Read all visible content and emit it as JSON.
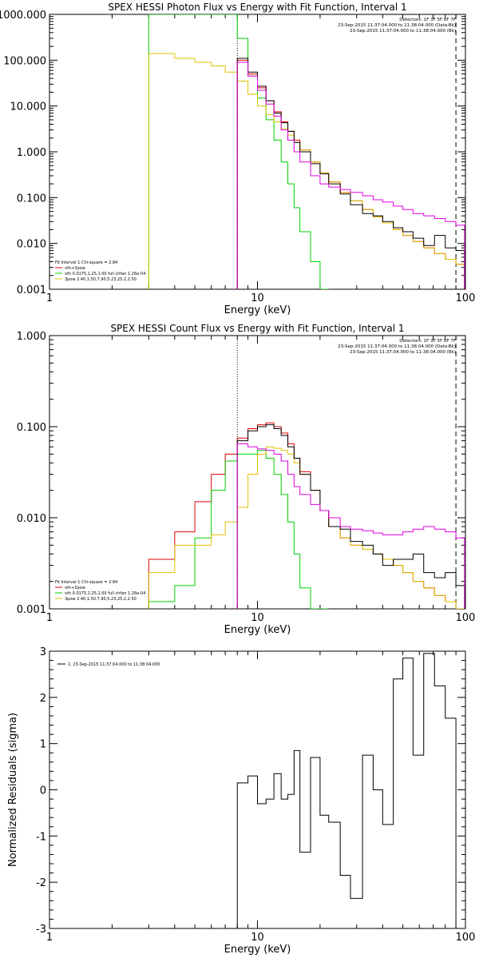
{
  "chart_data": [
    {
      "type": "line",
      "title": "SPEX HESSI Photon Flux vs Energy with Fit Function, Interval 1",
      "xlabel": "Energy (keV)",
      "ylabel": "",
      "xscale": "log",
      "yscale": "log",
      "xlim": [
        1,
        100
      ],
      "ylim": [
        0.001,
        1000
      ],
      "x_tick_labels": [
        "1",
        "10",
        "100"
      ],
      "y_tick_labels": [
        "0.001",
        "0.010",
        "0.100",
        "1.000",
        "10.000",
        "100.000",
        "1000.000"
      ],
      "vertical_lines": [
        {
          "x": 8,
          "style": "dotted"
        },
        {
          "x": 90,
          "style": "dashed"
        }
      ],
      "info_lines": [
        "Detectors: 1F 3F 5F 6F 7F",
        "23-Sep-2015 11:37:04.000 to 11:38:04.000 (Data-Bk)",
        "23-Sep-2015 11:37:04.000 to 11:38:04.000 (Bk)"
      ],
      "legend_position": "bottom-left",
      "legend_header": "Fit Interval 1   Chi-square = 2.84",
      "series": [
        {
          "name": "vth+3pow",
          "color": "#e00000",
          "x": [
            8,
            9,
            10,
            11,
            12,
            13,
            14,
            15,
            16,
            18,
            20,
            22,
            25,
            28,
            32,
            36,
            40,
            45,
            50,
            56,
            63,
            71,
            80,
            90
          ],
          "y": [
            100,
            50,
            25,
            13,
            7.5,
            4.5,
            2.8,
            1.8,
            1.1,
            0.6,
            0.35,
            0.22,
            0.13,
            0.085,
            0.055,
            0.038,
            0.028,
            0.02,
            0.015,
            0.011,
            0.008,
            0.006,
            0.0045,
            0.0035
          ]
        },
        {
          "name": "vth 0.0175,1.25,1.00  full chfan 1.26e-04",
          "color": "#00d000",
          "x": [
            3,
            6,
            7,
            8,
            9,
            10,
            11,
            12,
            13,
            14,
            15,
            16,
            18,
            20
          ],
          "y": [
            1000,
            1000,
            1000,
            300,
            45,
            15,
            5,
            1.8,
            0.6,
            0.2,
            0.06,
            0.018,
            0.004,
            0.001
          ]
        },
        {
          "name": "3pow 2.40,1.50,7.90,5.23,25.2,2.50",
          "color": "#e0c000",
          "x": [
            3,
            4,
            5,
            6,
            7,
            8,
            9,
            10,
            11,
            12,
            13,
            14,
            15,
            16,
            18,
            20,
            22,
            25,
            28,
            32,
            36,
            40,
            45,
            50,
            56,
            63,
            71,
            80,
            90
          ],
          "y": [
            140,
            110,
            90,
            75,
            55,
            35,
            18,
            10,
            6.5,
            4.5,
            3.2,
            2.3,
            1.6,
            1.1,
            0.6,
            0.35,
            0.22,
            0.13,
            0.085,
            0.055,
            0.038,
            0.028,
            0.02,
            0.015,
            0.011,
            0.008,
            0.006,
            0.0045,
            0.0035
          ]
        },
        {
          "name": "Data-Bk",
          "color": "#000000",
          "x": [
            8,
            9,
            10,
            11,
            12,
            13,
            14,
            15,
            16,
            18,
            20,
            22,
            25,
            28,
            32,
            36,
            40,
            45,
            50,
            56,
            63,
            71,
            80,
            90
          ],
          "y": [
            110,
            55,
            27,
            13,
            7,
            4.3,
            2.8,
            1.6,
            1.0,
            0.55,
            0.33,
            0.2,
            0.12,
            0.07,
            0.045,
            0.04,
            0.03,
            0.022,
            0.018,
            0.013,
            0.009,
            0.015,
            0.008,
            0.007
          ]
        },
        {
          "name": "Bk",
          "color": "#e000e0",
          "x": [
            8,
            9,
            10,
            11,
            12,
            13,
            14,
            15,
            16,
            18,
            20,
            22,
            25,
            28,
            32,
            36,
            40,
            45,
            50,
            56,
            63,
            71,
            80,
            90
          ],
          "y": [
            90,
            45,
            22,
            11,
            6,
            3,
            1.8,
            1.0,
            0.6,
            0.3,
            0.2,
            0.17,
            0.15,
            0.13,
            0.11,
            0.09,
            0.08,
            0.065,
            0.055,
            0.045,
            0.04,
            0.035,
            0.03,
            0.025
          ]
        }
      ]
    },
    {
      "type": "line",
      "title": "SPEX HESSI Count Flux vs Energy with Fit Function, Interval 1",
      "xlabel": "Energy (keV)",
      "ylabel": "",
      "xscale": "log",
      "yscale": "log",
      "xlim": [
        1,
        100
      ],
      "ylim": [
        0.001,
        1
      ],
      "x_tick_labels": [
        "1",
        "10",
        "100"
      ],
      "y_tick_labels": [
        "0.001",
        "0.010",
        "0.100",
        "1.000"
      ],
      "vertical_lines": [
        {
          "x": 8,
          "style": "dotted"
        },
        {
          "x": 90,
          "style": "dashed"
        }
      ],
      "info_lines": [
        "Detectors: 1F 3F 5F 6F 7F",
        "23-Sep-2015 11:37:04.000 to 11:38:04.000 (Data-Bk)",
        "23-Sep-2015 11:37:04.000 to 11:38:04.000 (Bk)"
      ],
      "legend_position": "bottom-left",
      "legend_header": "Fit Interval 1   Chi-square = 2.84",
      "series": [
        {
          "name": "vth+3pow",
          "color": "#e00000",
          "x": [
            3,
            4,
            5,
            6,
            7,
            8,
            9,
            10,
            11,
            12,
            13,
            14,
            15,
            16,
            18,
            20,
            22,
            25,
            28,
            32,
            36,
            40,
            45,
            50,
            56,
            63,
            71,
            80,
            90
          ],
          "y": [
            0.0035,
            0.007,
            0.015,
            0.03,
            0.05,
            0.075,
            0.095,
            0.105,
            0.11,
            0.1,
            0.085,
            0.065,
            0.045,
            0.032,
            0.02,
            0.012,
            0.008,
            0.006,
            0.005,
            0.0045,
            0.004,
            0.0035,
            0.003,
            0.0025,
            0.002,
            0.0017,
            0.0014,
            0.0012,
            0.001
          ]
        },
        {
          "name": "vth 0.0175,1.25,1.00  full chfan 1.26e-04",
          "color": "#00d000",
          "x": [
            3,
            4,
            5,
            6,
            7,
            8,
            9,
            10,
            11,
            12,
            13,
            14,
            15,
            16,
            18,
            20
          ],
          "y": [
            0.0012,
            0.0018,
            0.006,
            0.02,
            0.042,
            0.05,
            0.05,
            0.055,
            0.045,
            0.03,
            0.018,
            0.009,
            0.004,
            0.0017,
            0.001,
            0.001
          ]
        },
        {
          "name": "3pow 2.40,1.50,7.90,5.23,25.2,2.50",
          "color": "#e0c000",
          "x": [
            3,
            4,
            5,
            6,
            7,
            8,
            9,
            10,
            11,
            12,
            13,
            14,
            15,
            16,
            18,
            20,
            22,
            25,
            28,
            32,
            36,
            40,
            45,
            50,
            56,
            63,
            71,
            80,
            90
          ],
          "y": [
            0.0025,
            0.005,
            0.005,
            0.0065,
            0.009,
            0.013,
            0.03,
            0.05,
            0.06,
            0.058,
            0.055,
            0.05,
            0.04,
            0.03,
            0.02,
            0.012,
            0.008,
            0.006,
            0.005,
            0.0045,
            0.004,
            0.0035,
            0.003,
            0.0025,
            0.002,
            0.0017,
            0.0014,
            0.0012,
            0.001
          ]
        },
        {
          "name": "Data-Bk",
          "color": "#000000",
          "x": [
            8,
            9,
            10,
            11,
            12,
            13,
            14,
            15,
            16,
            18,
            20,
            22,
            25,
            28,
            32,
            36,
            40,
            45,
            50,
            56,
            63,
            71,
            80,
            90
          ],
          "y": [
            0.07,
            0.09,
            0.1,
            0.105,
            0.095,
            0.08,
            0.06,
            0.045,
            0.03,
            0.02,
            0.012,
            0.008,
            0.0075,
            0.0055,
            0.005,
            0.004,
            0.003,
            0.0035,
            0.0035,
            0.004,
            0.0025,
            0.0022,
            0.0025,
            0.0018
          ]
        },
        {
          "name": "Bk",
          "color": "#e000e0",
          "x": [
            8,
            9,
            10,
            11,
            12,
            13,
            14,
            15,
            16,
            18,
            20,
            22,
            25,
            28,
            32,
            36,
            40,
            45,
            50,
            56,
            63,
            71,
            80,
            90
          ],
          "y": [
            0.065,
            0.06,
            0.057,
            0.055,
            0.05,
            0.042,
            0.03,
            0.022,
            0.018,
            0.014,
            0.012,
            0.01,
            0.008,
            0.0075,
            0.0072,
            0.0068,
            0.0065,
            0.0065,
            0.007,
            0.0075,
            0.008,
            0.0075,
            0.007,
            0.006
          ]
        }
      ]
    },
    {
      "type": "line",
      "title": "",
      "xlabel": "Energy (keV)",
      "ylabel": "Normalized Residuals (sigma)",
      "xscale": "log",
      "yscale": "linear",
      "xlim": [
        1,
        100
      ],
      "ylim": [
        -3,
        3
      ],
      "x_tick_labels": [
        "1",
        "10",
        "100"
      ],
      "y_tick_labels": [
        "-3",
        "-2",
        "-1",
        "0",
        "1",
        "2",
        "3"
      ],
      "legend_position": "top-left",
      "series": [
        {
          "name": "1. 23-Sep-2015 11:37:04.000 to 11:38:04.000",
          "color": "#000000",
          "x": [
            8,
            9,
            10,
            11,
            12,
            13,
            14,
            15,
            16,
            18,
            20,
            22,
            25,
            28,
            32,
            36,
            40,
            45,
            50,
            56,
            63,
            71,
            80,
            90
          ],
          "y": [
            0.15,
            0.3,
            -0.3,
            -0.2,
            0.35,
            -0.2,
            -0.1,
            0.85,
            -1.35,
            0.7,
            -0.55,
            -0.7,
            -1.85,
            -2.35,
            0.75,
            0.0,
            -0.75,
            2.4,
            2.85,
            0.75,
            2.95,
            2.25,
            1.55,
            -3.0
          ]
        }
      ]
    }
  ]
}
